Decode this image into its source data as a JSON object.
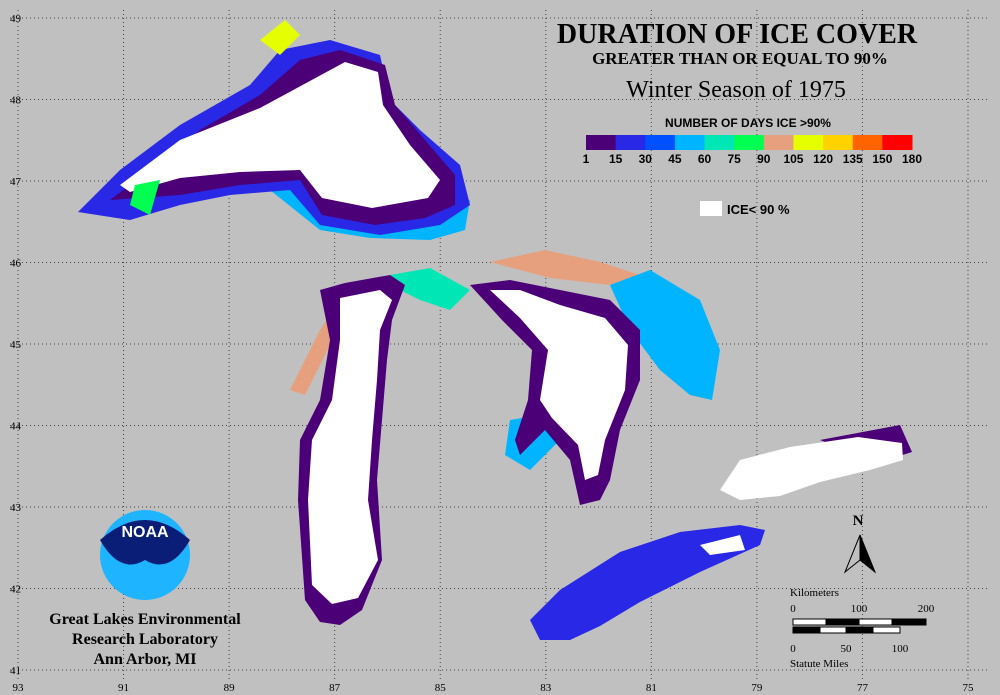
{
  "map": {
    "title": "DURATION OF ICE COVER",
    "subtitle": "GREATER THAN OR EQUAL TO 90%",
    "season": "Winter Season of 1975",
    "legend": {
      "title": "NUMBER OF DAYS ICE >90%",
      "colors": [
        "#4b0078",
        "#2828e6",
        "#0050ff",
        "#00b4ff",
        "#00e6b4",
        "#00ff50",
        "#e6a07d",
        "#e6ff00",
        "#ffd200",
        "#ff6400",
        "#ff0000",
        "#ff1e96"
      ],
      "labels": [
        "1",
        "15",
        "30",
        "45",
        "60",
        "75",
        "90",
        "105",
        "120",
        "135",
        "150",
        "180"
      ]
    },
    "ice_label": "ICE< 90 %",
    "north": "N",
    "scale": {
      "km_label": "Kilometers",
      "km_ticks": [
        "0",
        "100",
        "200"
      ],
      "mi_label": "Statute Miles",
      "mi_ticks": [
        "0",
        "50",
        "100"
      ]
    },
    "logo": "NOAA",
    "org": [
      "Great Lakes Environmental",
      "Research Laboratory",
      "Ann Arbor, MI"
    ],
    "lon_ticks": [
      93,
      91,
      89,
      87,
      85,
      83,
      81,
      79,
      77,
      75
    ],
    "lat_ticks": [
      49,
      48,
      47,
      46,
      45,
      44,
      43,
      42,
      41
    ]
  }
}
